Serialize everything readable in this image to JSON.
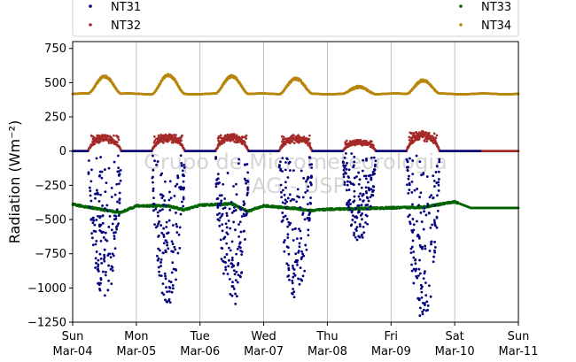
{
  "chart_data": {
    "type": "scatter",
    "title": "",
    "xlabel": "",
    "ylabel": "Radiation",
    "ylabel_unit": "(Wm⁻²)",
    "ylim": [
      -1250,
      800
    ],
    "yticks": [
      750,
      500,
      250,
      0,
      -250,
      -500,
      -750,
      -1000,
      -1250
    ],
    "ytick_labels": [
      "750",
      "500",
      "250",
      "0",
      "−250",
      "−500",
      "−750",
      "−1000",
      "−1250"
    ],
    "xlim": [
      "2018-03-04",
      "2018-03-11"
    ],
    "xticks": [
      {
        "day": "Sun",
        "date": "Mar-04"
      },
      {
        "day": "Mon",
        "date": "Mar-05"
      },
      {
        "day": "Tue",
        "date": "Mar-06"
      },
      {
        "day": "Wed",
        "date": "Mar-07"
      },
      {
        "day": "Thu",
        "date": "Mar-08"
      },
      {
        "day": "Fri",
        "date": "Mar-09"
      },
      {
        "day": "Sat",
        "date": "Mar-10"
      },
      {
        "day": "Sun",
        "date": "Mar-11"
      }
    ],
    "grid": "vertical",
    "legend_placement": "top",
    "watermark": [
      "Grupo de Micrometeorologia",
      "IAG - USP"
    ],
    "series": [
      {
        "name": "NT31",
        "color": "#00007f",
        "night_value": 0,
        "daily_min": [
          -1090,
          -1140,
          -1150,
          -1080,
          -660,
          -1240
        ],
        "coverage_end": "2018-03-10"
      },
      {
        "name": "NT32",
        "color": "#a52a2a",
        "night_value": 0,
        "daily_max": [
          115,
          120,
          120,
          115,
          80,
          140
        ]
      },
      {
        "name": "NT33",
        "color": "#006400",
        "night_value": -410,
        "profile": [
          {
            "x": "2018-03-04 00:00",
            "y": -390
          },
          {
            "x": "2018-03-04 12:00",
            "y": -430
          },
          {
            "x": "2018-03-04 18:00",
            "y": -450
          },
          {
            "x": "2018-03-05 00:00",
            "y": -400
          },
          {
            "x": "2018-03-05 12:00",
            "y": -400
          },
          {
            "x": "2018-03-05 18:00",
            "y": -430
          },
          {
            "x": "2018-03-06 00:00",
            "y": -395
          },
          {
            "x": "2018-03-06 12:00",
            "y": -385
          },
          {
            "x": "2018-03-06 18:00",
            "y": -440
          },
          {
            "x": "2018-03-07 00:00",
            "y": -400
          },
          {
            "x": "2018-03-07 12:00",
            "y": -420
          },
          {
            "x": "2018-03-07 18:00",
            "y": -435
          },
          {
            "x": "2018-03-08 00:00",
            "y": -425
          },
          {
            "x": "2018-03-08 12:00",
            "y": -420
          },
          {
            "x": "2018-03-09 00:00",
            "y": -415
          },
          {
            "x": "2018-03-09 12:00",
            "y": -410
          },
          {
            "x": "2018-03-09 18:00",
            "y": -390
          },
          {
            "x": "2018-03-10 00:00",
            "y": -370
          },
          {
            "x": "2018-03-10 06:00",
            "y": -415
          },
          {
            "x": "2018-03-11 00:00",
            "y": -415
          }
        ]
      },
      {
        "name": "NT34",
        "color": "#b8860b",
        "night_value": 420,
        "daily_max": [
          550,
          555,
          550,
          530,
          470,
          520
        ]
      }
    ]
  }
}
